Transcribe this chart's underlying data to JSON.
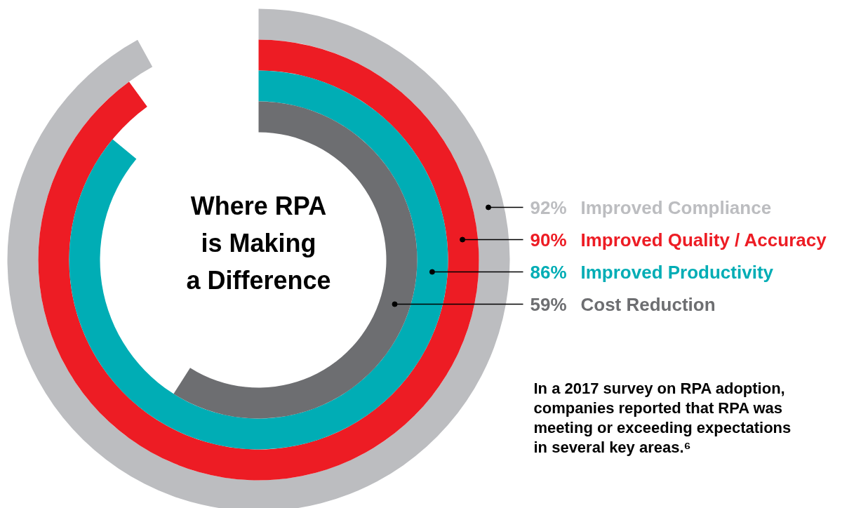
{
  "chart_data": {
    "type": "other",
    "title": "Where RPA is Making a Difference",
    "categories": [
      "Improved Compliance",
      "Improved Quality / Accuracy",
      "Improved Productivity",
      "Cost Reduction"
    ],
    "values": [
      92,
      90,
      86,
      59
    ],
    "value_labels": [
      "92%",
      "90%",
      "86%",
      "59%"
    ],
    "colors": [
      "#bcbdc0",
      "#ed1c24",
      "#00adb5",
      "#6d6e71"
    ],
    "annotations": [
      "In a 2017 survey on RPA adoption, companies reported that RPA was meeting or exceeding expectations in several key areas.⁶"
    ]
  }
}
